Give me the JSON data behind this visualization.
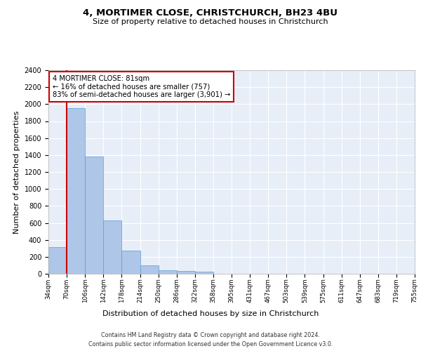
{
  "title": "4, MORTIMER CLOSE, CHRISTCHURCH, BH23 4BU",
  "subtitle": "Size of property relative to detached houses in Christchurch",
  "xlabel": "Distribution of detached houses by size in Christchurch",
  "ylabel": "Number of detached properties",
  "bar_values": [
    315,
    1950,
    1380,
    630,
    270,
    100,
    45,
    30,
    25,
    0,
    0,
    0,
    0,
    0,
    0,
    0,
    0,
    0,
    0,
    0
  ],
  "bar_labels": [
    "34sqm",
    "70sqm",
    "106sqm",
    "142sqm",
    "178sqm",
    "214sqm",
    "250sqm",
    "286sqm",
    "322sqm",
    "358sqm",
    "395sqm",
    "431sqm",
    "467sqm",
    "503sqm",
    "539sqm",
    "575sqm",
    "611sqm",
    "647sqm",
    "683sqm",
    "719sqm",
    "755sqm"
  ],
  "bar_color": "#aec6e8",
  "bar_edge_color": "#5a9fd4",
  "red_line_x": 1.0,
  "annotation_text": "4 MORTIMER CLOSE: 81sqm\n← 16% of detached houses are smaller (757)\n83% of semi-detached houses are larger (3,901) →",
  "annotation_box_color": "#ffffff",
  "annotation_border_color": "#cc0000",
  "ylim": [
    0,
    2400
  ],
  "yticks": [
    0,
    200,
    400,
    600,
    800,
    1000,
    1200,
    1400,
    1600,
    1800,
    2000,
    2200,
    2400
  ],
  "footer_line1": "Contains HM Land Registry data © Crown copyright and database right 2024.",
  "footer_line2": "Contains public sector information licensed under the Open Government Licence v3.0.",
  "bg_color": "#e8eef8",
  "grid_color": "#ffffff",
  "title_fontsize": 9.5,
  "subtitle_fontsize": 8,
  "ylabel_fontsize": 8,
  "xlabel_fontsize": 8
}
